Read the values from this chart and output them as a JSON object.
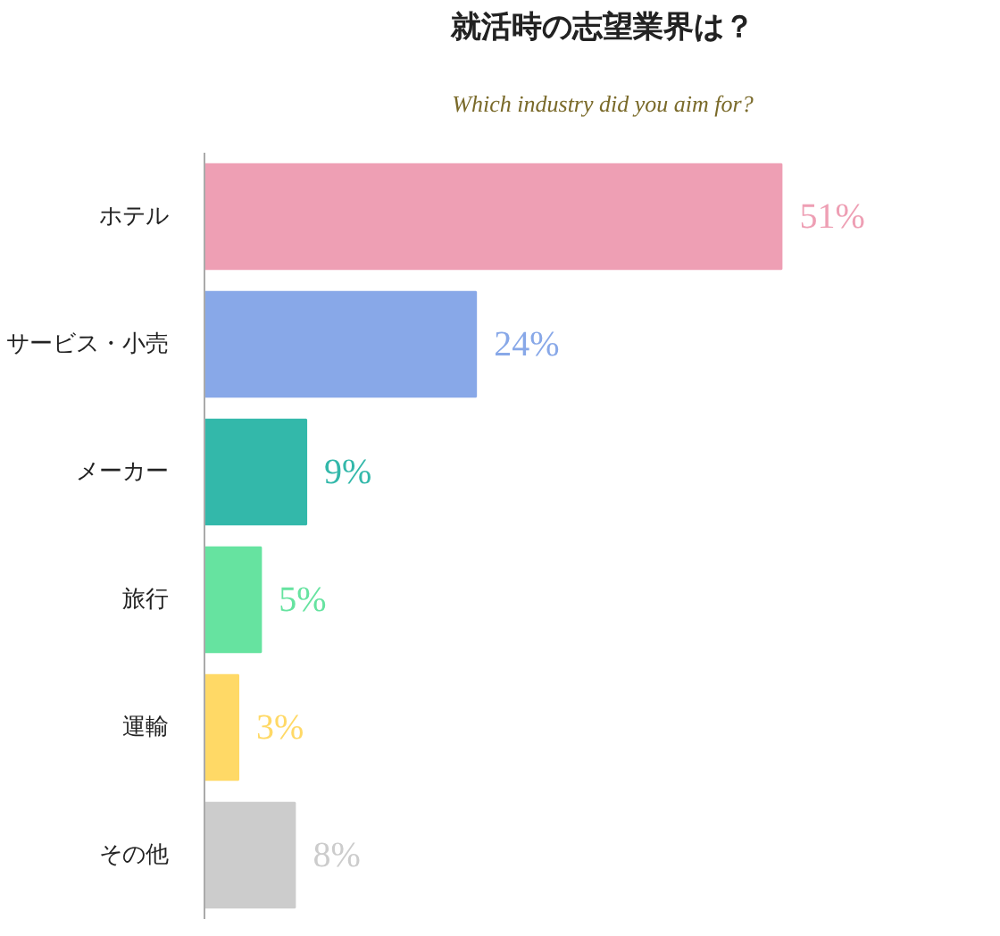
{
  "chart_data": {
    "type": "bar",
    "orientation": "horizontal",
    "title": "就活時の志望業界は？",
    "subtitle": "Which industry did you aim for?",
    "categories": [
      "ホテル",
      "サービス・小売",
      "メーカー",
      "旅行",
      "運輸",
      "その他"
    ],
    "values": [
      51,
      24,
      9,
      5,
      3,
      8
    ],
    "colors": [
      "#ee9fb4",
      "#88a8e8",
      "#33b8aa",
      "#66e3a0",
      "#ffd966",
      "#cccccc"
    ],
    "value_labels": [
      "51%",
      "24%",
      "9%",
      "5%",
      "3%",
      "8%"
    ],
    "grid": false
  }
}
